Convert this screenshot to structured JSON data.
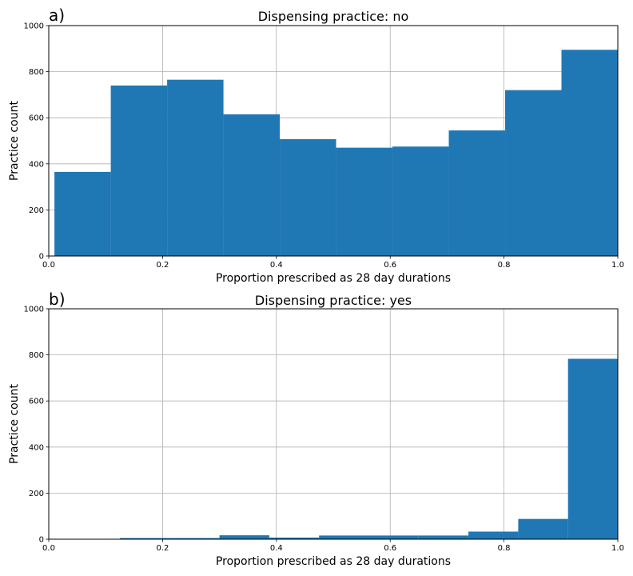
{
  "chart_data": [
    {
      "type": "bar",
      "panel_label": "a)",
      "title": "Dispensing practice: no",
      "xlabel": "Proportion prescribed as 28 day durations",
      "ylabel": "Practice count",
      "xlim": [
        0.0,
        1.0
      ],
      "ylim": [
        0,
        1000
      ],
      "xticks": [
        "0.0",
        "0.2",
        "0.4",
        "0.6",
        "0.8",
        "1.0"
      ],
      "yticks": [
        "0",
        "200",
        "400",
        "600",
        "800",
        "1000"
      ],
      "grid": true,
      "color": "#1f77b4",
      "bins": [
        {
          "x0": 0.01,
          "x1": 0.109,
          "value": 365
        },
        {
          "x0": 0.109,
          "x1": 0.208,
          "value": 740
        },
        {
          "x0": 0.208,
          "x1": 0.307,
          "value": 765
        },
        {
          "x0": 0.307,
          "x1": 0.406,
          "value": 615
        },
        {
          "x0": 0.406,
          "x1": 0.505,
          "value": 507
        },
        {
          "x0": 0.505,
          "x1": 0.604,
          "value": 470
        },
        {
          "x0": 0.604,
          "x1": 0.703,
          "value": 475
        },
        {
          "x0": 0.703,
          "x1": 0.802,
          "value": 545
        },
        {
          "x0": 0.802,
          "x1": 0.901,
          "value": 720
        },
        {
          "x0": 0.901,
          "x1": 1.0,
          "value": 895
        }
      ]
    },
    {
      "type": "bar",
      "panel_label": "b)",
      "title": "Dispensing practice: yes",
      "xlabel": "Proportion prescribed as 28 day durations",
      "ylabel": "Practice count",
      "xlim": [
        0.0,
        1.0
      ],
      "ylim": [
        0,
        1000
      ],
      "xticks": [
        "0.0",
        "0.2",
        "0.4",
        "0.6",
        "0.8",
        "1.0"
      ],
      "yticks": [
        "0",
        "200",
        "400",
        "600",
        "800",
        "1000"
      ],
      "grid": true,
      "color": "#1f77b4",
      "bins": [
        {
          "x0": 0.125,
          "x1": 0.2125,
          "value": 5
        },
        {
          "x0": 0.2125,
          "x1": 0.3,
          "value": 5
        },
        {
          "x0": 0.3,
          "x1": 0.3875,
          "value": 17
        },
        {
          "x0": 0.3875,
          "x1": 0.475,
          "value": 7
        },
        {
          "x0": 0.475,
          "x1": 0.5625,
          "value": 16
        },
        {
          "x0": 0.5625,
          "x1": 0.65,
          "value": 16
        },
        {
          "x0": 0.65,
          "x1": 0.7375,
          "value": 16
        },
        {
          "x0": 0.7375,
          "x1": 0.825,
          "value": 33
        },
        {
          "x0": 0.825,
          "x1": 0.9125,
          "value": 88
        },
        {
          "x0": 0.9125,
          "x1": 1.0,
          "value": 783
        }
      ]
    }
  ]
}
